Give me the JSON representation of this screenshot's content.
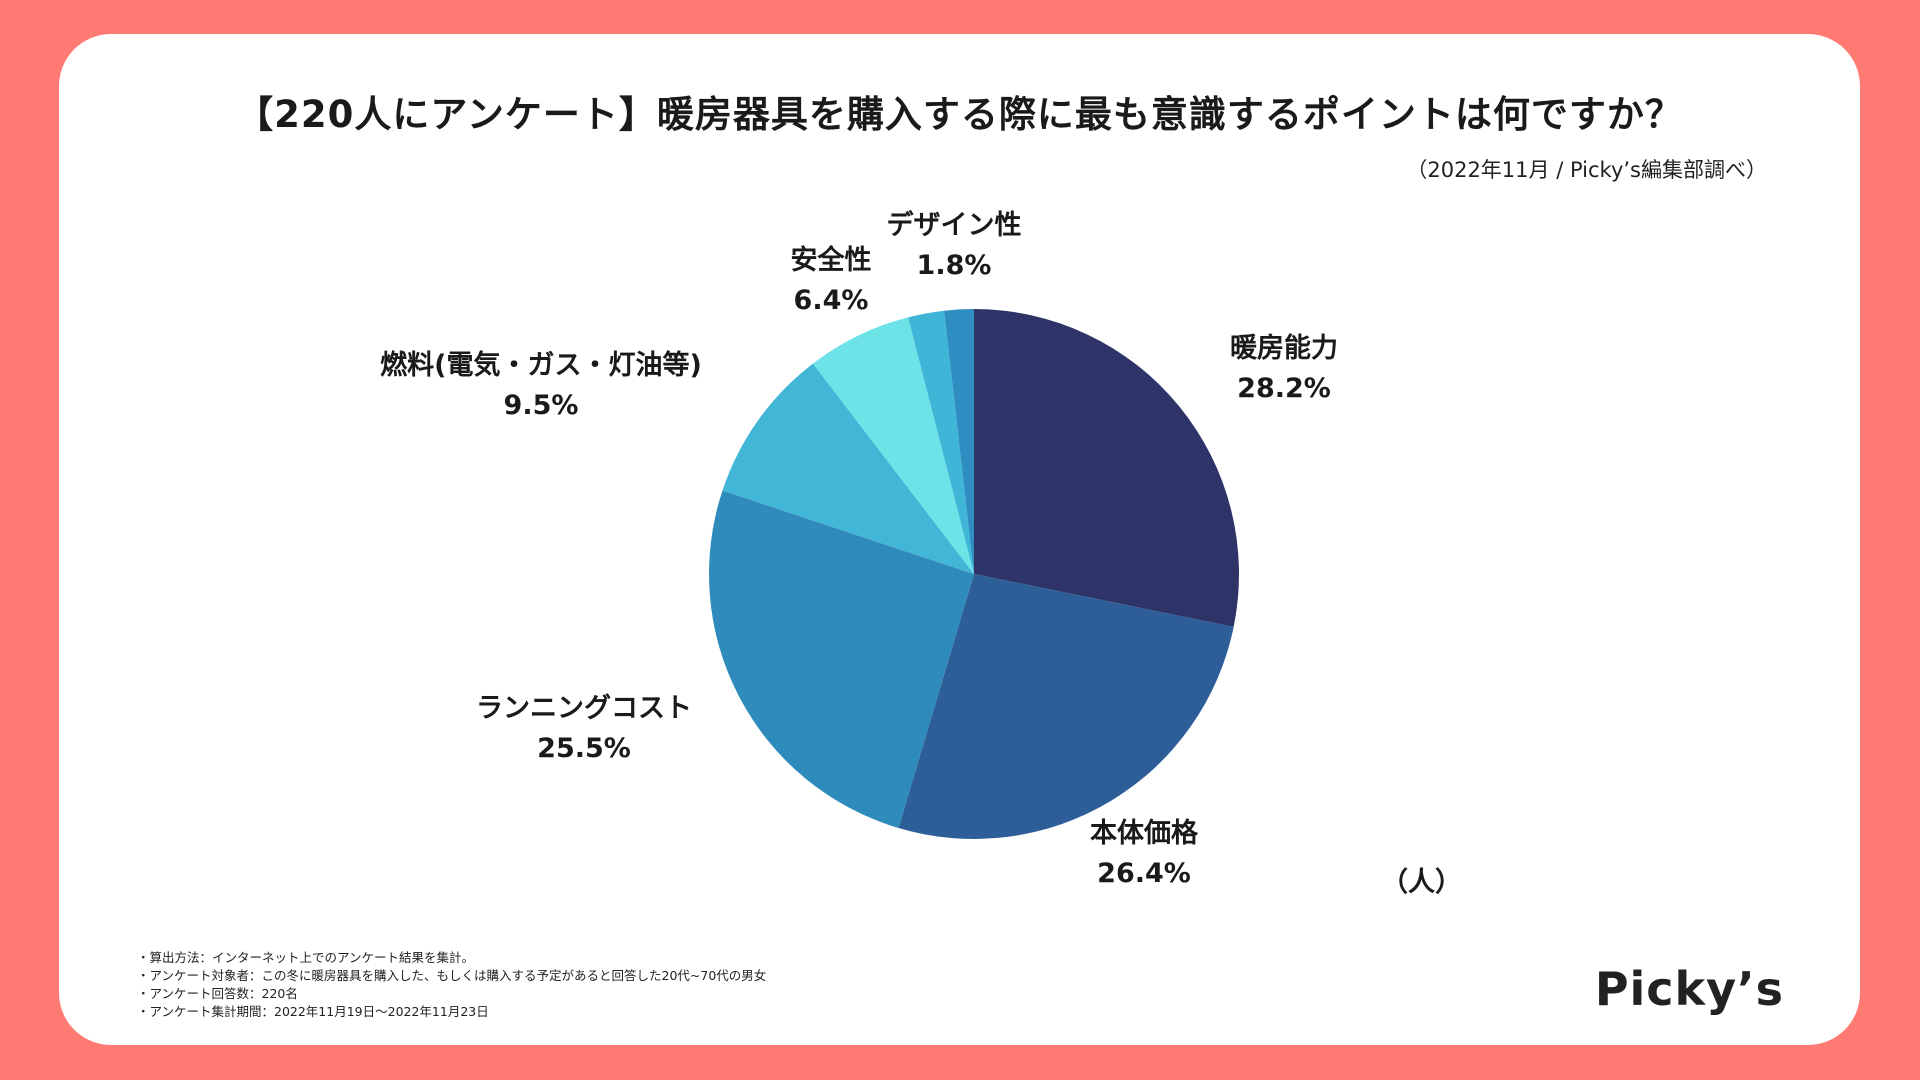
{
  "title": "【220人にアンケート】暖房器具を購入する際に最も意識するポイントは何ですか？",
  "source": "（2022年11月 / Picky’s編集部調べ）",
  "unit": "（人）",
  "brand": "Picky’s",
  "notes": [
    "・算出方法：インターネット上でのアンケート結果を集計。",
    "・アンケート対象者：この冬に暖房器具を購入した、もしくは購入する予定があると回答した20代~70代の男女",
    "・アンケート回答数：220名",
    "・アンケート集計期間：2022年11月19日〜2022年11月23日"
  ],
  "chart_data": {
    "type": "pie",
    "start": "12 o'clock",
    "direction": "clockwise",
    "slices": [
      {
        "label": "暖房能力",
        "value": 28.2,
        "value_label": "28.2%",
        "color": "#2E3368"
      },
      {
        "label": "本体価格",
        "value": 26.4,
        "value_label": "26.4%",
        "color": "#2E5E98"
      },
      {
        "label": "ランニングコスト",
        "value": 25.5,
        "value_label": "25.5%",
        "color": "#2E8BBB"
      },
      {
        "label": "燃料(電気・ガス・灯油等)",
        "value": 9.5,
        "value_label": "9.5%",
        "color": "#41B6D6"
      },
      {
        "label": "安全性",
        "value": 6.4,
        "value_label": "6.4%",
        "color": "#6DE3E8"
      },
      {
        "label": "",
        "value": 2.2,
        "value_label": "",
        "color": "#3FB6D8"
      },
      {
        "label": "デザイン性",
        "value": 1.8,
        "value_label": "1.8%",
        "color": "#2E8EC2"
      }
    ]
  }
}
